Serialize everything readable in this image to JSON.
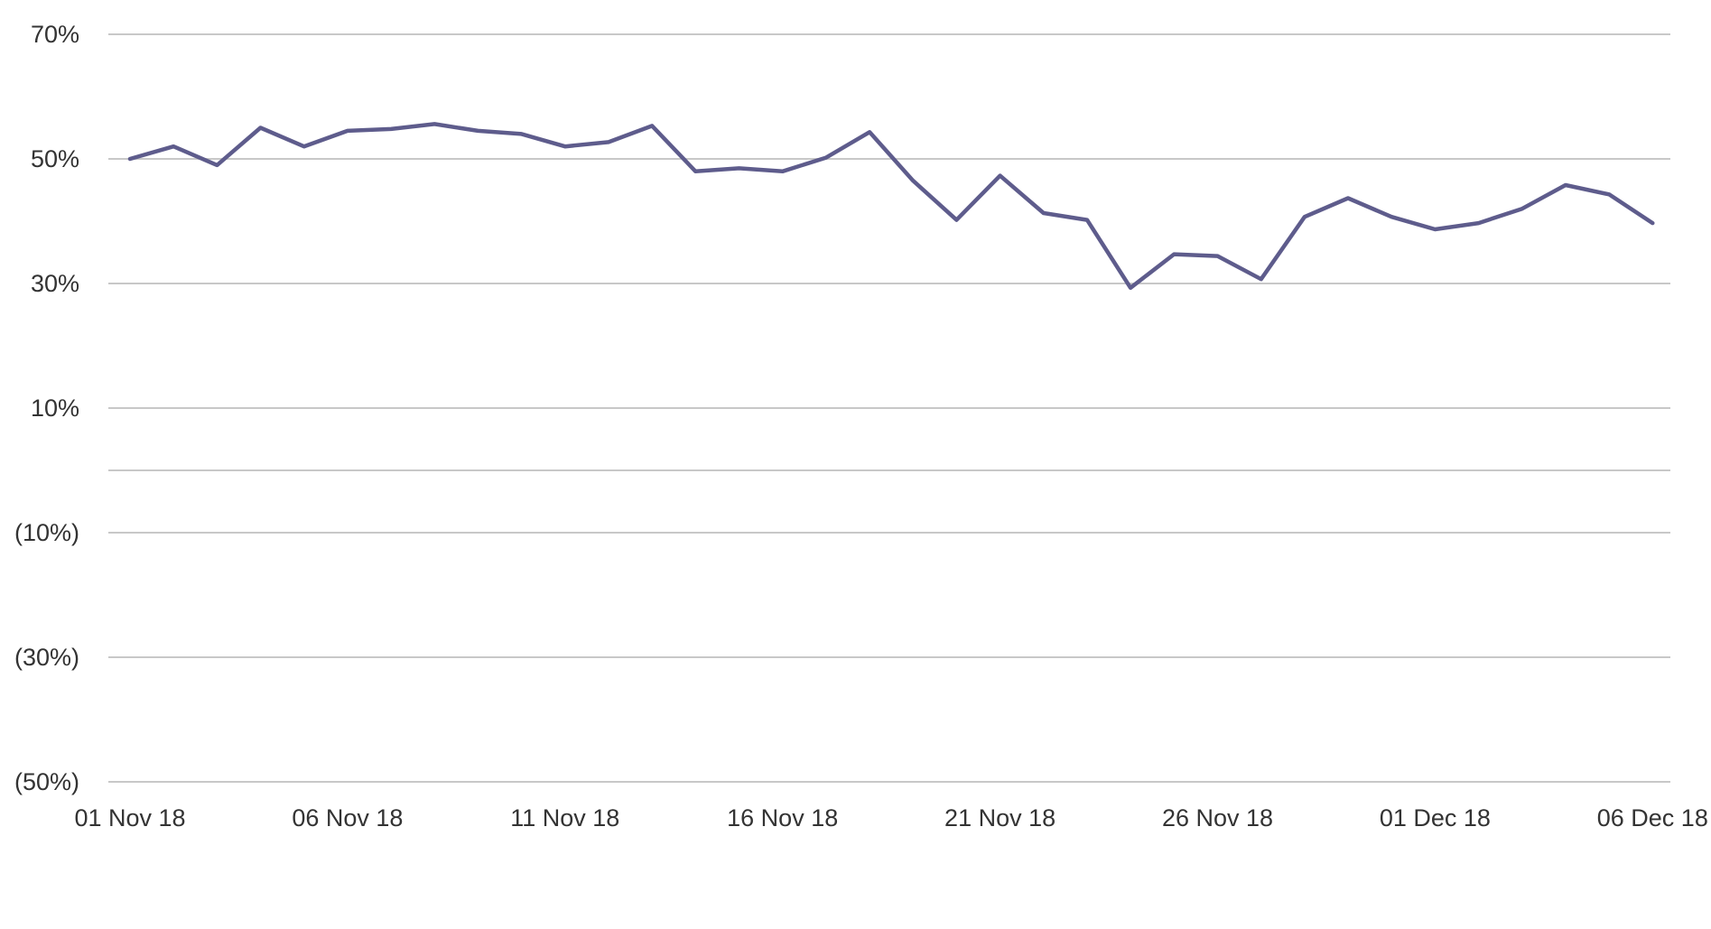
{
  "chart_data": {
    "type": "line",
    "title": "",
    "xlabel": "",
    "ylabel": "",
    "ylim": [
      -0.5,
      0.7
    ],
    "y_ticks": [
      0.7,
      0.5,
      0.3,
      0.1,
      -0.1,
      -0.3,
      -0.5
    ],
    "y_tick_labels": [
      "70%",
      "50%",
      "30%",
      "10%",
      "(10%)",
      "(30%)",
      "(50%)"
    ],
    "extra_gridlines": [
      0.0
    ],
    "x_tick_labels": [
      "01 Nov 18",
      "06 Nov 18",
      "11 Nov 18",
      "16 Nov 18",
      "21 Nov 18",
      "26 Nov 18",
      "01 Dec 18",
      "06 Dec 18"
    ],
    "x_tick_dates": [
      "2018-11-01",
      "2018-11-06",
      "2018-11-11",
      "2018-11-16",
      "2018-11-21",
      "2018-11-26",
      "2018-12-01",
      "2018-12-06"
    ],
    "grid": true,
    "legend": "none",
    "series": [
      {
        "color": "#5e5c8c",
        "x": [
          "2018-11-01",
          "2018-11-02",
          "2018-11-03",
          "2018-11-04",
          "2018-11-05",
          "2018-11-06",
          "2018-11-07",
          "2018-11-08",
          "2018-11-09",
          "2018-11-10",
          "2018-11-11",
          "2018-11-12",
          "2018-11-13",
          "2018-11-14",
          "2018-11-15",
          "2018-11-16",
          "2018-11-17",
          "2018-11-18",
          "2018-11-19",
          "2018-11-20",
          "2018-11-21",
          "2018-11-22",
          "2018-11-23",
          "2018-11-24",
          "2018-11-25",
          "2018-11-26",
          "2018-11-27",
          "2018-11-28",
          "2018-11-29",
          "2018-11-30",
          "2018-12-01",
          "2018-12-02",
          "2018-12-03",
          "2018-12-04",
          "2018-12-05",
          "2018-12-06"
        ],
        "values": [
          0.5,
          0.52,
          0.49,
          0.55,
          0.52,
          0.545,
          0.548,
          0.556,
          0.545,
          0.54,
          0.52,
          0.527,
          0.553,
          0.48,
          0.485,
          0.48,
          0.502,
          0.543,
          0.465,
          0.402,
          0.473,
          0.413,
          0.402,
          0.293,
          0.347,
          0.344,
          0.307,
          0.407,
          0.437,
          0.407,
          0.387,
          0.397,
          0.42,
          0.458,
          0.443,
          0.397
        ]
      }
    ]
  }
}
